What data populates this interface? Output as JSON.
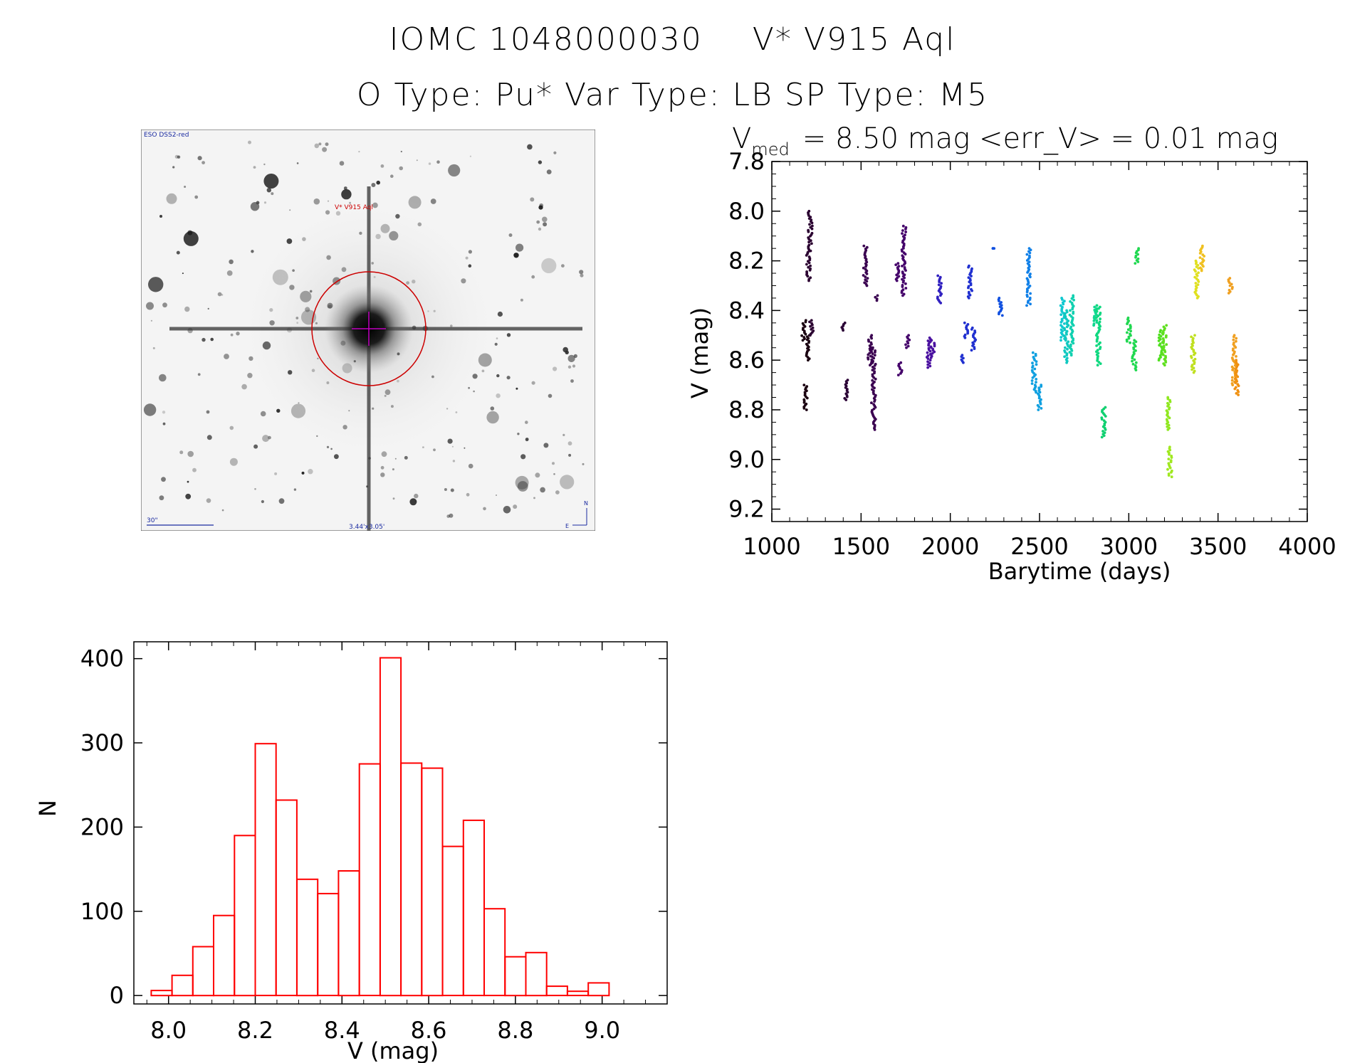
{
  "title": {
    "line1_id": "IOMC 1048000030",
    "line1_name": "V* V915 Aql",
    "line2": "O Type: Pu*   Var Type: LB   SP Type: M5"
  },
  "sky_image": {
    "survey_label": "ESO DSS2-red",
    "target_label": "V* V915 Aql",
    "scale_label": "30\"",
    "fov_label": "3.44'x3.05'",
    "compass_n": "N",
    "compass_e": "E",
    "colors": {
      "annotation": "#cc0000",
      "overlay": "#1a2aa0"
    }
  },
  "chart_data": [
    {
      "type": "scatter",
      "title_prefix": "V",
      "title_sub": "med",
      "title_rest": "= 8.50 mag <err_V> = 0.01 mag",
      "xlabel": "Barytime (days)",
      "ylabel": "V (mag)",
      "xlim": [
        1000,
        4000
      ],
      "ylim": [
        9.25,
        7.8
      ],
      "xticks": [
        1000,
        1500,
        2000,
        2500,
        3000,
        3500,
        4000
      ],
      "yticks": [
        7.8,
        8.0,
        8.2,
        8.4,
        8.6,
        8.8,
        9.0,
        9.2
      ],
      "segments": [
        {
          "x": 1180,
          "y0": 8.44,
          "y1": 8.52,
          "color": "#1a0010"
        },
        {
          "x": 1190,
          "y0": 8.7,
          "y1": 8.8,
          "color": "#1a0010"
        },
        {
          "x": 1200,
          "y0": 8.5,
          "y1": 8.6,
          "color": "#1a0010"
        },
        {
          "x": 1205,
          "y0": 8.16,
          "y1": 8.28,
          "color": "#2a0030"
        },
        {
          "x": 1215,
          "y0": 8.0,
          "y1": 8.16,
          "color": "#2a0030"
        },
        {
          "x": 1222,
          "y0": 8.44,
          "y1": 8.5,
          "color": "#2a0030"
        },
        {
          "x": 1400,
          "y0": 8.45,
          "y1": 8.48,
          "color": "#2a0035"
        },
        {
          "x": 1420,
          "y0": 8.68,
          "y1": 8.76,
          "color": "#2a0035"
        },
        {
          "x": 1525,
          "y0": 8.14,
          "y1": 8.3,
          "color": "#3a0050"
        },
        {
          "x": 1550,
          "y0": 8.5,
          "y1": 8.62,
          "color": "#3a0050"
        },
        {
          "x": 1570,
          "y0": 8.55,
          "y1": 8.88,
          "color": "#3a0050"
        },
        {
          "x": 1585,
          "y0": 8.34,
          "y1": 8.36,
          "color": "#3a0050"
        },
        {
          "x": 1700,
          "y0": 8.21,
          "y1": 8.28,
          "color": "#44006a"
        },
        {
          "x": 1720,
          "y0": 8.61,
          "y1": 8.66,
          "color": "#44006a"
        },
        {
          "x": 1740,
          "y0": 8.06,
          "y1": 8.34,
          "color": "#44006a"
        },
        {
          "x": 1760,
          "y0": 8.5,
          "y1": 8.55,
          "color": "#44006a"
        },
        {
          "x": 1880,
          "y0": 8.51,
          "y1": 8.63,
          "color": "#4a10a0"
        },
        {
          "x": 1900,
          "y0": 8.52,
          "y1": 8.59,
          "color": "#4a10a0"
        },
        {
          "x": 1940,
          "y0": 8.26,
          "y1": 8.37,
          "color": "#3020c0"
        },
        {
          "x": 2070,
          "y0": 8.58,
          "y1": 8.61,
          "color": "#2030d0"
        },
        {
          "x": 2090,
          "y0": 8.45,
          "y1": 8.51,
          "color": "#2030d0"
        },
        {
          "x": 2110,
          "y0": 8.22,
          "y1": 8.35,
          "color": "#2030d0"
        },
        {
          "x": 2130,
          "y0": 8.47,
          "y1": 8.56,
          "color": "#2030d0"
        },
        {
          "x": 2250,
          "y0": 8.15,
          "y1": 8.15,
          "color": "#1050e0"
        },
        {
          "x": 2280,
          "y0": 8.35,
          "y1": 8.42,
          "color": "#1050e0"
        },
        {
          "x": 2440,
          "y0": 8.15,
          "y1": 8.38,
          "color": "#1080e8"
        },
        {
          "x": 2470,
          "y0": 8.57,
          "y1": 8.73,
          "color": "#10a0e0"
        },
        {
          "x": 2500,
          "y0": 8.7,
          "y1": 8.8,
          "color": "#10a0e0"
        },
        {
          "x": 2630,
          "y0": 8.35,
          "y1": 8.52,
          "color": "#10c8d0"
        },
        {
          "x": 2650,
          "y0": 8.4,
          "y1": 8.61,
          "color": "#10c8c0"
        },
        {
          "x": 2680,
          "y0": 8.34,
          "y1": 8.58,
          "color": "#10d0b0"
        },
        {
          "x": 2810,
          "y0": 8.38,
          "y1": 8.46,
          "color": "#10d890"
        },
        {
          "x": 2830,
          "y0": 8.38,
          "y1": 8.62,
          "color": "#10d880"
        },
        {
          "x": 2860,
          "y0": 8.79,
          "y1": 8.91,
          "color": "#10d070"
        },
        {
          "x": 3000,
          "y0": 8.43,
          "y1": 8.53,
          "color": "#20d850"
        },
        {
          "x": 3030,
          "y0": 8.52,
          "y1": 8.64,
          "color": "#20d850"
        },
        {
          "x": 3045,
          "y0": 8.15,
          "y1": 8.21,
          "color": "#20d850"
        },
        {
          "x": 3180,
          "y0": 8.48,
          "y1": 8.6,
          "color": "#50e020"
        },
        {
          "x": 3200,
          "y0": 8.46,
          "y1": 8.62,
          "color": "#60e020"
        },
        {
          "x": 3220,
          "y0": 8.75,
          "y1": 8.88,
          "color": "#90e820"
        },
        {
          "x": 3230,
          "y0": 8.95,
          "y1": 9.07,
          "color": "#a0e820"
        },
        {
          "x": 3360,
          "y0": 8.5,
          "y1": 8.65,
          "color": "#c0e020"
        },
        {
          "x": 3380,
          "y0": 8.2,
          "y1": 8.35,
          "color": "#e0e020"
        },
        {
          "x": 3410,
          "y0": 8.14,
          "y1": 8.24,
          "color": "#f0c020"
        },
        {
          "x": 3570,
          "y0": 8.27,
          "y1": 8.33,
          "color": "#f0a020"
        },
        {
          "x": 3590,
          "y0": 8.5,
          "y1": 8.7,
          "color": "#f0a020"
        },
        {
          "x": 3605,
          "y0": 8.6,
          "y1": 8.74,
          "color": "#f09010"
        }
      ]
    },
    {
      "type": "bar",
      "xlabel": "V (mag)",
      "ylabel": "N",
      "xlim": [
        7.92,
        9.15
      ],
      "ylim": [
        -10,
        420
      ],
      "xticks": [
        8.0,
        8.2,
        8.4,
        8.6,
        8.8,
        9.0
      ],
      "xtick_labels": [
        "8.0",
        "8.2",
        "8.4",
        "8.6",
        "8.8",
        "9.0"
      ],
      "yticks": [
        0,
        100,
        200,
        300,
        400
      ],
      "bin_start": 7.96,
      "bin_width": 0.048,
      "values": [
        6,
        24,
        58,
        95,
        190,
        299,
        232,
        138,
        121,
        148,
        275,
        401,
        276,
        270,
        177,
        208,
        103,
        46,
        51,
        11,
        5,
        15,
        0
      ],
      "color": "#ff0000"
    }
  ]
}
